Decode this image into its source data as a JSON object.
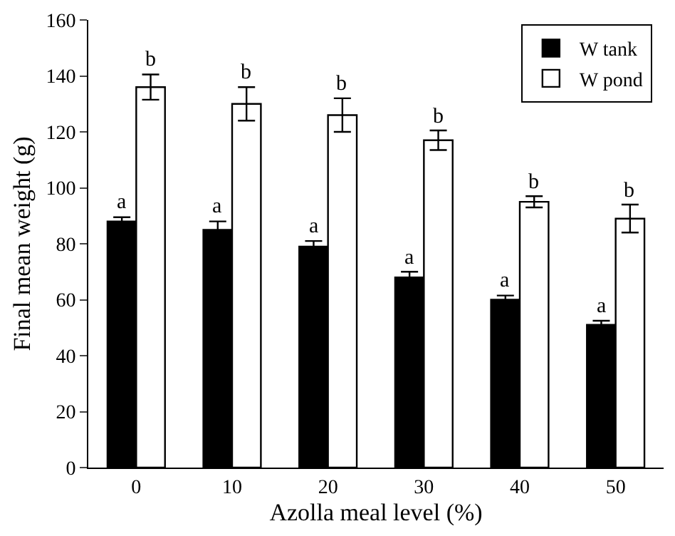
{
  "chart_data": {
    "type": "bar",
    "xlabel": "Azolla meal level (%)",
    "ylabel": "Final mean weight (g)",
    "categories": [
      "0",
      "10",
      "20",
      "30",
      "40",
      "50"
    ],
    "series": [
      {
        "name": "W tank",
        "color": "#000000",
        "values": [
          88,
          85,
          79,
          68,
          60,
          51
        ],
        "errors": [
          1.5,
          3,
          2,
          2,
          1.5,
          1.5
        ]
      },
      {
        "name": "W pond",
        "color": "#ffffff",
        "values": [
          136,
          130,
          126,
          117,
          95,
          89
        ],
        "errors": [
          4.5,
          6,
          6,
          3.5,
          2,
          5
        ]
      }
    ],
    "ylim": [
      0,
      160
    ],
    "yticks": [
      0,
      20,
      40,
      60,
      80,
      100,
      120,
      140,
      160
    ],
    "legend": "top right",
    "annotations": [
      {
        "text": "a",
        "x": "0",
        "y": 89.5
      },
      {
        "text": "b",
        "x": "0",
        "y": 140.5
      },
      {
        "text": "a",
        "x": "10",
        "y": 88
      },
      {
        "text": "b",
        "x": "10",
        "y": 136
      },
      {
        "text": "a",
        "x": "20",
        "y": 81
      },
      {
        "text": "b",
        "x": "20",
        "y": 132
      },
      {
        "text": "a",
        "x": "30",
        "y": 70
      },
      {
        "text": "b",
        "x": "30",
        "y": 120.5
      },
      {
        "text": "a",
        "x": "40",
        "y": 61.5
      },
      {
        "text": "b",
        "x": "40",
        "y": 97
      },
      {
        "text": "a",
        "x": "50",
        "y": 52.5
      },
      {
        "text": "b",
        "x": "50",
        "y": 94
      }
    ]
  }
}
